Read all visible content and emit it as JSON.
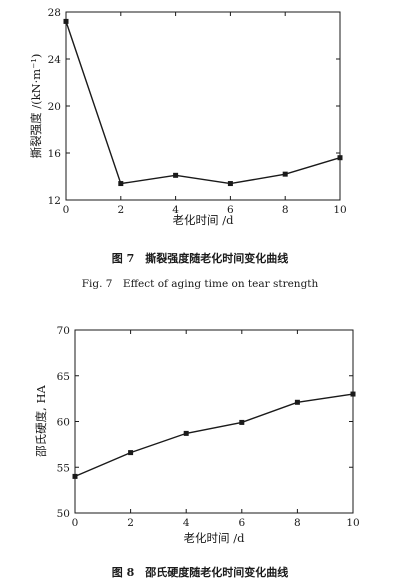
{
  "chart_data": [
    {
      "type": "line",
      "x": [
        0,
        2,
        4,
        6,
        8,
        10
      ],
      "series": [
        {
          "values": [
            27.2,
            13.4,
            14.1,
            13.4,
            14.2,
            15.6
          ]
        }
      ],
      "xlabel": "老化时间 /d",
      "ylabel": "撕裂强度 /(kN·m⁻¹)",
      "xlim": [
        0,
        10
      ],
      "ylim": [
        12,
        28
      ],
      "xticks": [
        0,
        2,
        4,
        6,
        8,
        10
      ],
      "yticks": [
        12,
        16,
        20,
        24,
        28
      ],
      "grid": false,
      "caption_cn": "图 7　撕裂强度随老化时间变化曲线",
      "caption_en": "Fig. 7　Effect of aging time on tear strength"
    },
    {
      "type": "line",
      "x": [
        0,
        2,
        4,
        6,
        8,
        10
      ],
      "series": [
        {
          "values": [
            54.0,
            56.6,
            58.7,
            59.9,
            62.1,
            63.0
          ]
        }
      ],
      "xlabel": "老化时间 /d",
      "ylabel": "邵氏硬度, HA",
      "xlim": [
        0,
        10
      ],
      "ylim": [
        50,
        70
      ],
      "xticks": [
        0,
        2,
        4,
        6,
        8,
        10
      ],
      "yticks": [
        50,
        55,
        60,
        65,
        70
      ],
      "grid": false,
      "caption_cn": "图 8　邵氏硬度随老化时间变化曲线"
    }
  ]
}
